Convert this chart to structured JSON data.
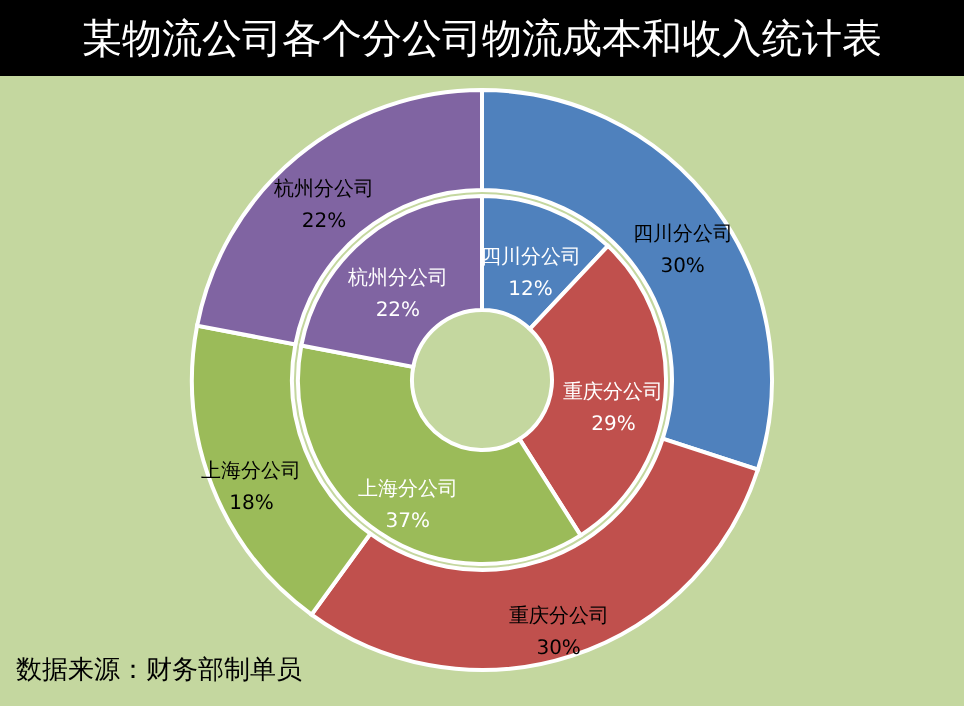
{
  "chart_data": {
    "type": "donut",
    "title": "某物流公司各个分公司物流成本和收入统计表",
    "categories": [
      "四川分公司",
      "重庆分公司",
      "上海分公司",
      "杭州分公司"
    ],
    "colors": [
      "#4f81bd",
      "#c0504d",
      "#9bbb59",
      "#8064a2"
    ],
    "series": [
      {
        "values": [
          12,
          29,
          37,
          22
        ],
        "value_labels": [
          "12%",
          "29%",
          "37%",
          "22%"
        ]
      },
      {
        "values": [
          30,
          30,
          18,
          22
        ],
        "value_labels": [
          "30%",
          "30%",
          "18%",
          "22%"
        ]
      }
    ],
    "annotations": [
      "数据来源：财务部制单员"
    ]
  }
}
